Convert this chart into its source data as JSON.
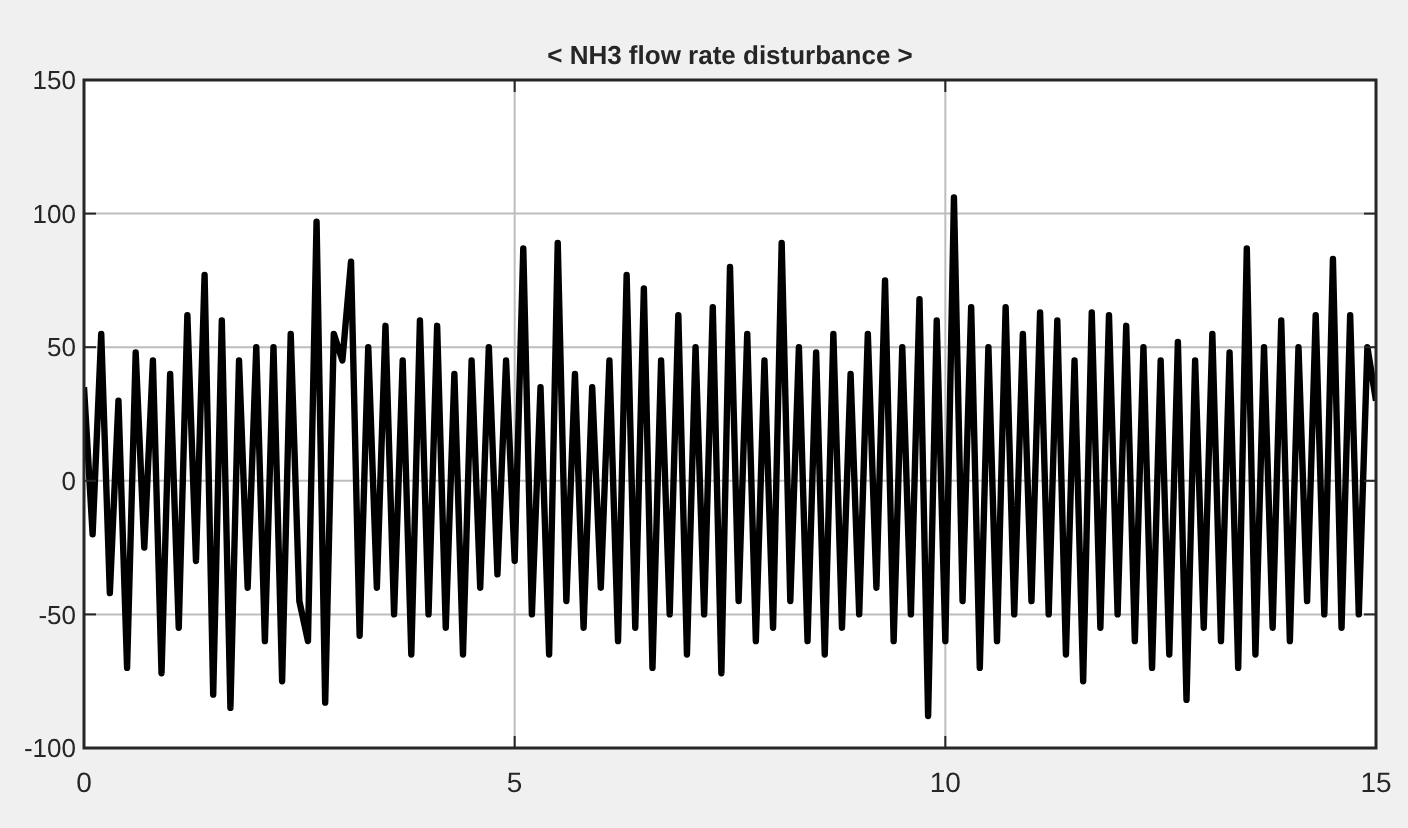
{
  "chart_data": {
    "type": "line",
    "title": "< NH3 flow rate disturbance >",
    "x": [
      0,
      0.1,
      0.2,
      0.3,
      0.4,
      0.5,
      0.6,
      0.7,
      0.8,
      0.9,
      1,
      1.1,
      1.2,
      1.3,
      1.4,
      1.5,
      1.6,
      1.7,
      1.8,
      1.9,
      2,
      2.1,
      2.2,
      2.3,
      2.4,
      2.5,
      2.6,
      2.7,
      2.8,
      2.9,
      3,
      3.1,
      3.2,
      3.3,
      3.4,
      3.5,
      3.6,
      3.7,
      3.8,
      3.9,
      4,
      4.1,
      4.2,
      4.3,
      4.4,
      4.5,
      4.6,
      4.7,
      4.8,
      4.9,
      5,
      5.1,
      5.2,
      5.3,
      5.4,
      5.5,
      5.6,
      5.7,
      5.8,
      5.9,
      6,
      6.1,
      6.2,
      6.3,
      6.4,
      6.5,
      6.6,
      6.7,
      6.8,
      6.9,
      7,
      7.1,
      7.2,
      7.3,
      7.4,
      7.5,
      7.6,
      7.7,
      7.8,
      7.9,
      8,
      8.1,
      8.2,
      8.3,
      8.4,
      8.5,
      8.6,
      8.7,
      8.8,
      8.9,
      9,
      9.1,
      9.2,
      9.3,
      9.4,
      9.5,
      9.6,
      9.7,
      9.8,
      9.9,
      10,
      10.1,
      10.2,
      10.3,
      10.4,
      10.5,
      10.6,
      10.7,
      10.8,
      10.9,
      11,
      11.1,
      11.2,
      11.3,
      11.4,
      11.5,
      11.6,
      11.7,
      11.8,
      11.9,
      12,
      12.1,
      12.2,
      12.3,
      12.4,
      12.5,
      12.6,
      12.7,
      12.8,
      12.9,
      13,
      13.1,
      13.2,
      13.3,
      13.4,
      13.5,
      13.6,
      13.7,
      13.8,
      13.9,
      14,
      14.1,
      14.2,
      14.3,
      14.4,
      14.5,
      14.6,
      14.7,
      14.8,
      14.9,
      15
    ],
    "series": [
      {
        "color": "#000000",
        "values": [
          35,
          -20,
          55,
          -42,
          30,
          -70,
          48,
          -25,
          45,
          -72,
          40,
          -55,
          62,
          -30,
          77,
          -80,
          60,
          -85,
          45,
          -40,
          50,
          -60,
          50,
          -75,
          55,
          -45,
          -60,
          97,
          -83,
          55,
          45,
          82,
          -58,
          50,
          -40,
          58,
          -50,
          45,
          -65,
          60,
          -50,
          58,
          -55,
          40,
          -65,
          45,
          -40,
          50,
          -35,
          45,
          -30,
          87,
          -50,
          35,
          -65,
          89,
          -45,
          40,
          -55,
          35,
          -40,
          45,
          -60,
          77,
          -55,
          72,
          -70,
          45,
          -50,
          62,
          -65,
          50,
          -50,
          65,
          -72,
          80,
          -45,
          55,
          -60,
          45,
          -55,
          89,
          -45,
          50,
          -60,
          48,
          -65,
          55,
          -55,
          40,
          -50,
          55,
          -40,
          75,
          -60,
          50,
          -50,
          68,
          -88,
          60,
          -60,
          106,
          -45,
          65,
          -70,
          50,
          -60,
          65,
          -50,
          55,
          -45,
          63,
          -50,
          60,
          -65,
          45,
          -75,
          63,
          -55,
          62,
          -50,
          58,
          -60,
          50,
          -70,
          45,
          -65,
          52,
          -82,
          45,
          -55,
          55,
          -60,
          48,
          -70,
          87,
          -65,
          50,
          -55,
          60,
          -60,
          50,
          -45,
          62,
          -50,
          83,
          -55,
          62,
          -50,
          50,
          30
        ]
      }
    ],
    "xlim": [
      0,
      15
    ],
    "xticks": [
      0,
      5,
      10,
      15
    ],
    "ylim": [
      -100,
      150
    ],
    "yticks": [
      -100,
      -50,
      0,
      50,
      100,
      150
    ],
    "grid": true,
    "line_style": "solid",
    "marker": "none"
  }
}
